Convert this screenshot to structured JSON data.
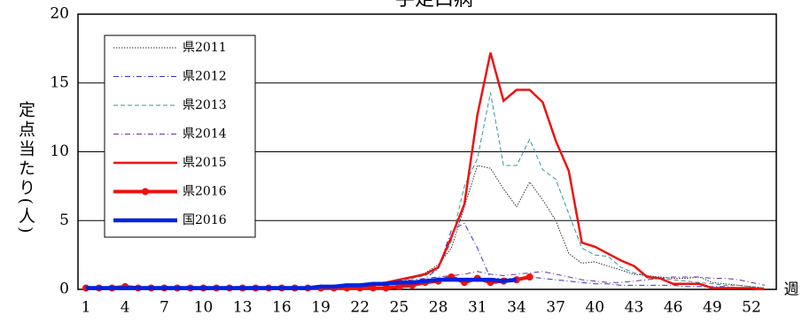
{
  "chart_data": {
    "type": "line",
    "title": "手足口病",
    "y_label": "定点当たり(人)",
    "x_label": "週",
    "categories": [
      1,
      null,
      null,
      4,
      null,
      null,
      7,
      null,
      null,
      10,
      null,
      null,
      13,
      null,
      null,
      16,
      null,
      null,
      19,
      null,
      null,
      22,
      null,
      null,
      25,
      null,
      null,
      28,
      null,
      null,
      31,
      null,
      null,
      34,
      null,
      null,
      37,
      null,
      null,
      40,
      null,
      null,
      43,
      null,
      null,
      46,
      null,
      null,
      49,
      null,
      null,
      52,
      null
    ],
    "ylim": [
      0,
      20
    ],
    "yticks": [
      0,
      5,
      10,
      15,
      20
    ],
    "grid": true,
    "legend": "upper left",
    "series": [
      {
        "name": "県2011",
        "color": "#333333",
        "style": "dotted",
        "width": 1,
        "marker": false,
        "values": [
          0.1,
          0.1,
          0.1,
          0.1,
          0.1,
          0.1,
          0.1,
          0.1,
          0.1,
          0.1,
          0.1,
          0.1,
          0.1,
          0.1,
          0.1,
          0.1,
          0.1,
          0.1,
          0.1,
          0.1,
          0.2,
          0.3,
          0.4,
          0.5,
          0.7,
          0.9,
          1.2,
          1.8,
          3.0,
          6.0,
          9.0,
          8.8,
          7.3,
          6.0,
          7.8,
          6.5,
          5.0,
          2.6,
          1.9,
          2.0,
          1.7,
          1.4,
          1.1,
          1.0,
          0.9,
          0.8,
          0.8,
          0.9,
          0.5,
          0.4,
          0.3,
          0.2,
          0.1
        ]
      },
      {
        "name": "県2012",
        "color": "#3333cc",
        "style": "dashdot",
        "width": 1,
        "marker": false,
        "values": [
          0.1,
          0.1,
          0.1,
          0.1,
          0.1,
          0.1,
          0.1,
          0.1,
          0.1,
          0.1,
          0.1,
          0.1,
          0.1,
          0.1,
          0.1,
          0.1,
          0.1,
          0.1,
          0.1,
          0.1,
          0.2,
          0.2,
          0.3,
          0.3,
          0.4,
          0.5,
          0.8,
          1.5,
          4.3,
          4.8,
          3.0,
          0.8,
          0.8,
          0.8,
          0.9,
          0.8,
          0.7,
          0.6,
          0.5,
          0.4,
          0.4,
          0.3,
          0.3,
          0.3,
          0.3,
          0.3,
          0.2,
          0.2,
          0.2,
          0.2,
          0.1,
          0.1,
          0.1
        ]
      },
      {
        "name": "県2013",
        "color": "#339999",
        "style": "dashed",
        "width": 1,
        "marker": false,
        "values": [
          0.2,
          0.2,
          0.2,
          0.2,
          0.2,
          0.2,
          0.2,
          0.2,
          0.2,
          0.2,
          0.2,
          0.2,
          0.2,
          0.2,
          0.2,
          0.2,
          0.2,
          0.2,
          0.2,
          0.2,
          0.3,
          0.3,
          0.4,
          0.5,
          0.6,
          0.8,
          1.0,
          1.5,
          3.5,
          7.5,
          9.5,
          14.3,
          9.0,
          9.0,
          10.9,
          8.7,
          8.0,
          5.5,
          3.0,
          2.5,
          2.4,
          1.6,
          1.2,
          1.0,
          0.8,
          0.7,
          0.6,
          0.5,
          0.4,
          0.3,
          0.3,
          0.2,
          0.1
        ]
      },
      {
        "name": "県2014",
        "color": "#663399",
        "style": "dashdot",
        "width": 1,
        "marker": false,
        "values": [
          0.2,
          0.2,
          0.2,
          0.2,
          0.2,
          0.2,
          0.2,
          0.2,
          0.2,
          0.2,
          0.2,
          0.2,
          0.2,
          0.2,
          0.2,
          0.2,
          0.2,
          0.2,
          0.2,
          0.2,
          0.3,
          0.3,
          0.4,
          0.5,
          0.6,
          0.7,
          0.8,
          0.9,
          1.0,
          1.1,
          1.3,
          1.1,
          1.0,
          1.1,
          1.2,
          1.3,
          1.1,
          0.9,
          0.7,
          0.6,
          0.5,
          0.5,
          0.6,
          0.7,
          0.8,
          0.9,
          0.9,
          0.9,
          0.8,
          0.8,
          0.7,
          0.5,
          0.3
        ]
      },
      {
        "name": "県2015",
        "color": "#ee1111",
        "style": "solid",
        "width": 2.5,
        "marker": false,
        "values": [
          0.1,
          0.1,
          0.1,
          0.1,
          0.1,
          0.1,
          0.1,
          0.1,
          0.1,
          0.1,
          0.1,
          0.1,
          0.1,
          0.1,
          0.1,
          0.1,
          0.1,
          0.1,
          0.1,
          0.1,
          0.2,
          0.3,
          0.4,
          0.5,
          0.7,
          0.9,
          1.1,
          1.6,
          3.8,
          6.2,
          12.7,
          17.2,
          13.7,
          14.5,
          14.5,
          13.6,
          10.8,
          8.6,
          3.4,
          3.1,
          2.6,
          2.1,
          1.7,
          0.9,
          0.8,
          0.4,
          0.4,
          0.4,
          0.1,
          0.1,
          0.1,
          0.1,
          0.0
        ]
      },
      {
        "name": "県2016",
        "color": "#ee1111",
        "style": "solid",
        "width": 4,
        "marker": true,
        "values": [
          0.1,
          0.1,
          0.1,
          0.2,
          0.1,
          0.1,
          0.1,
          0.1,
          0.1,
          0.1,
          0.1,
          0.1,
          0.1,
          0.1,
          0.1,
          0.1,
          0.1,
          0.1,
          0.1,
          0.1,
          0.1,
          0.1,
          0.1,
          0.1,
          0.2,
          0.3,
          0.5,
          0.6,
          0.9,
          0.5,
          0.8,
          0.5,
          0.6,
          0.7,
          0.9,
          null,
          null,
          null,
          null,
          null,
          null,
          null,
          null,
          null,
          null,
          null,
          null,
          null,
          null,
          null,
          null,
          null,
          null
        ]
      },
      {
        "name": "国2016",
        "color": "#0022dd",
        "style": "solid",
        "width": 4.5,
        "marker": false,
        "values": [
          0.1,
          0.1,
          0.1,
          0.1,
          0.1,
          0.1,
          0.1,
          0.1,
          0.1,
          0.1,
          0.1,
          0.1,
          0.1,
          0.1,
          0.1,
          0.1,
          0.1,
          0.1,
          0.2,
          0.2,
          0.3,
          0.3,
          0.4,
          0.4,
          0.5,
          0.5,
          0.6,
          0.7,
          0.7,
          0.7,
          0.7,
          0.7,
          0.6,
          0.7,
          null,
          null,
          null,
          null,
          null,
          null,
          null,
          null,
          null,
          null,
          null,
          null,
          null,
          null,
          null,
          null,
          null,
          null,
          null
        ]
      }
    ]
  }
}
